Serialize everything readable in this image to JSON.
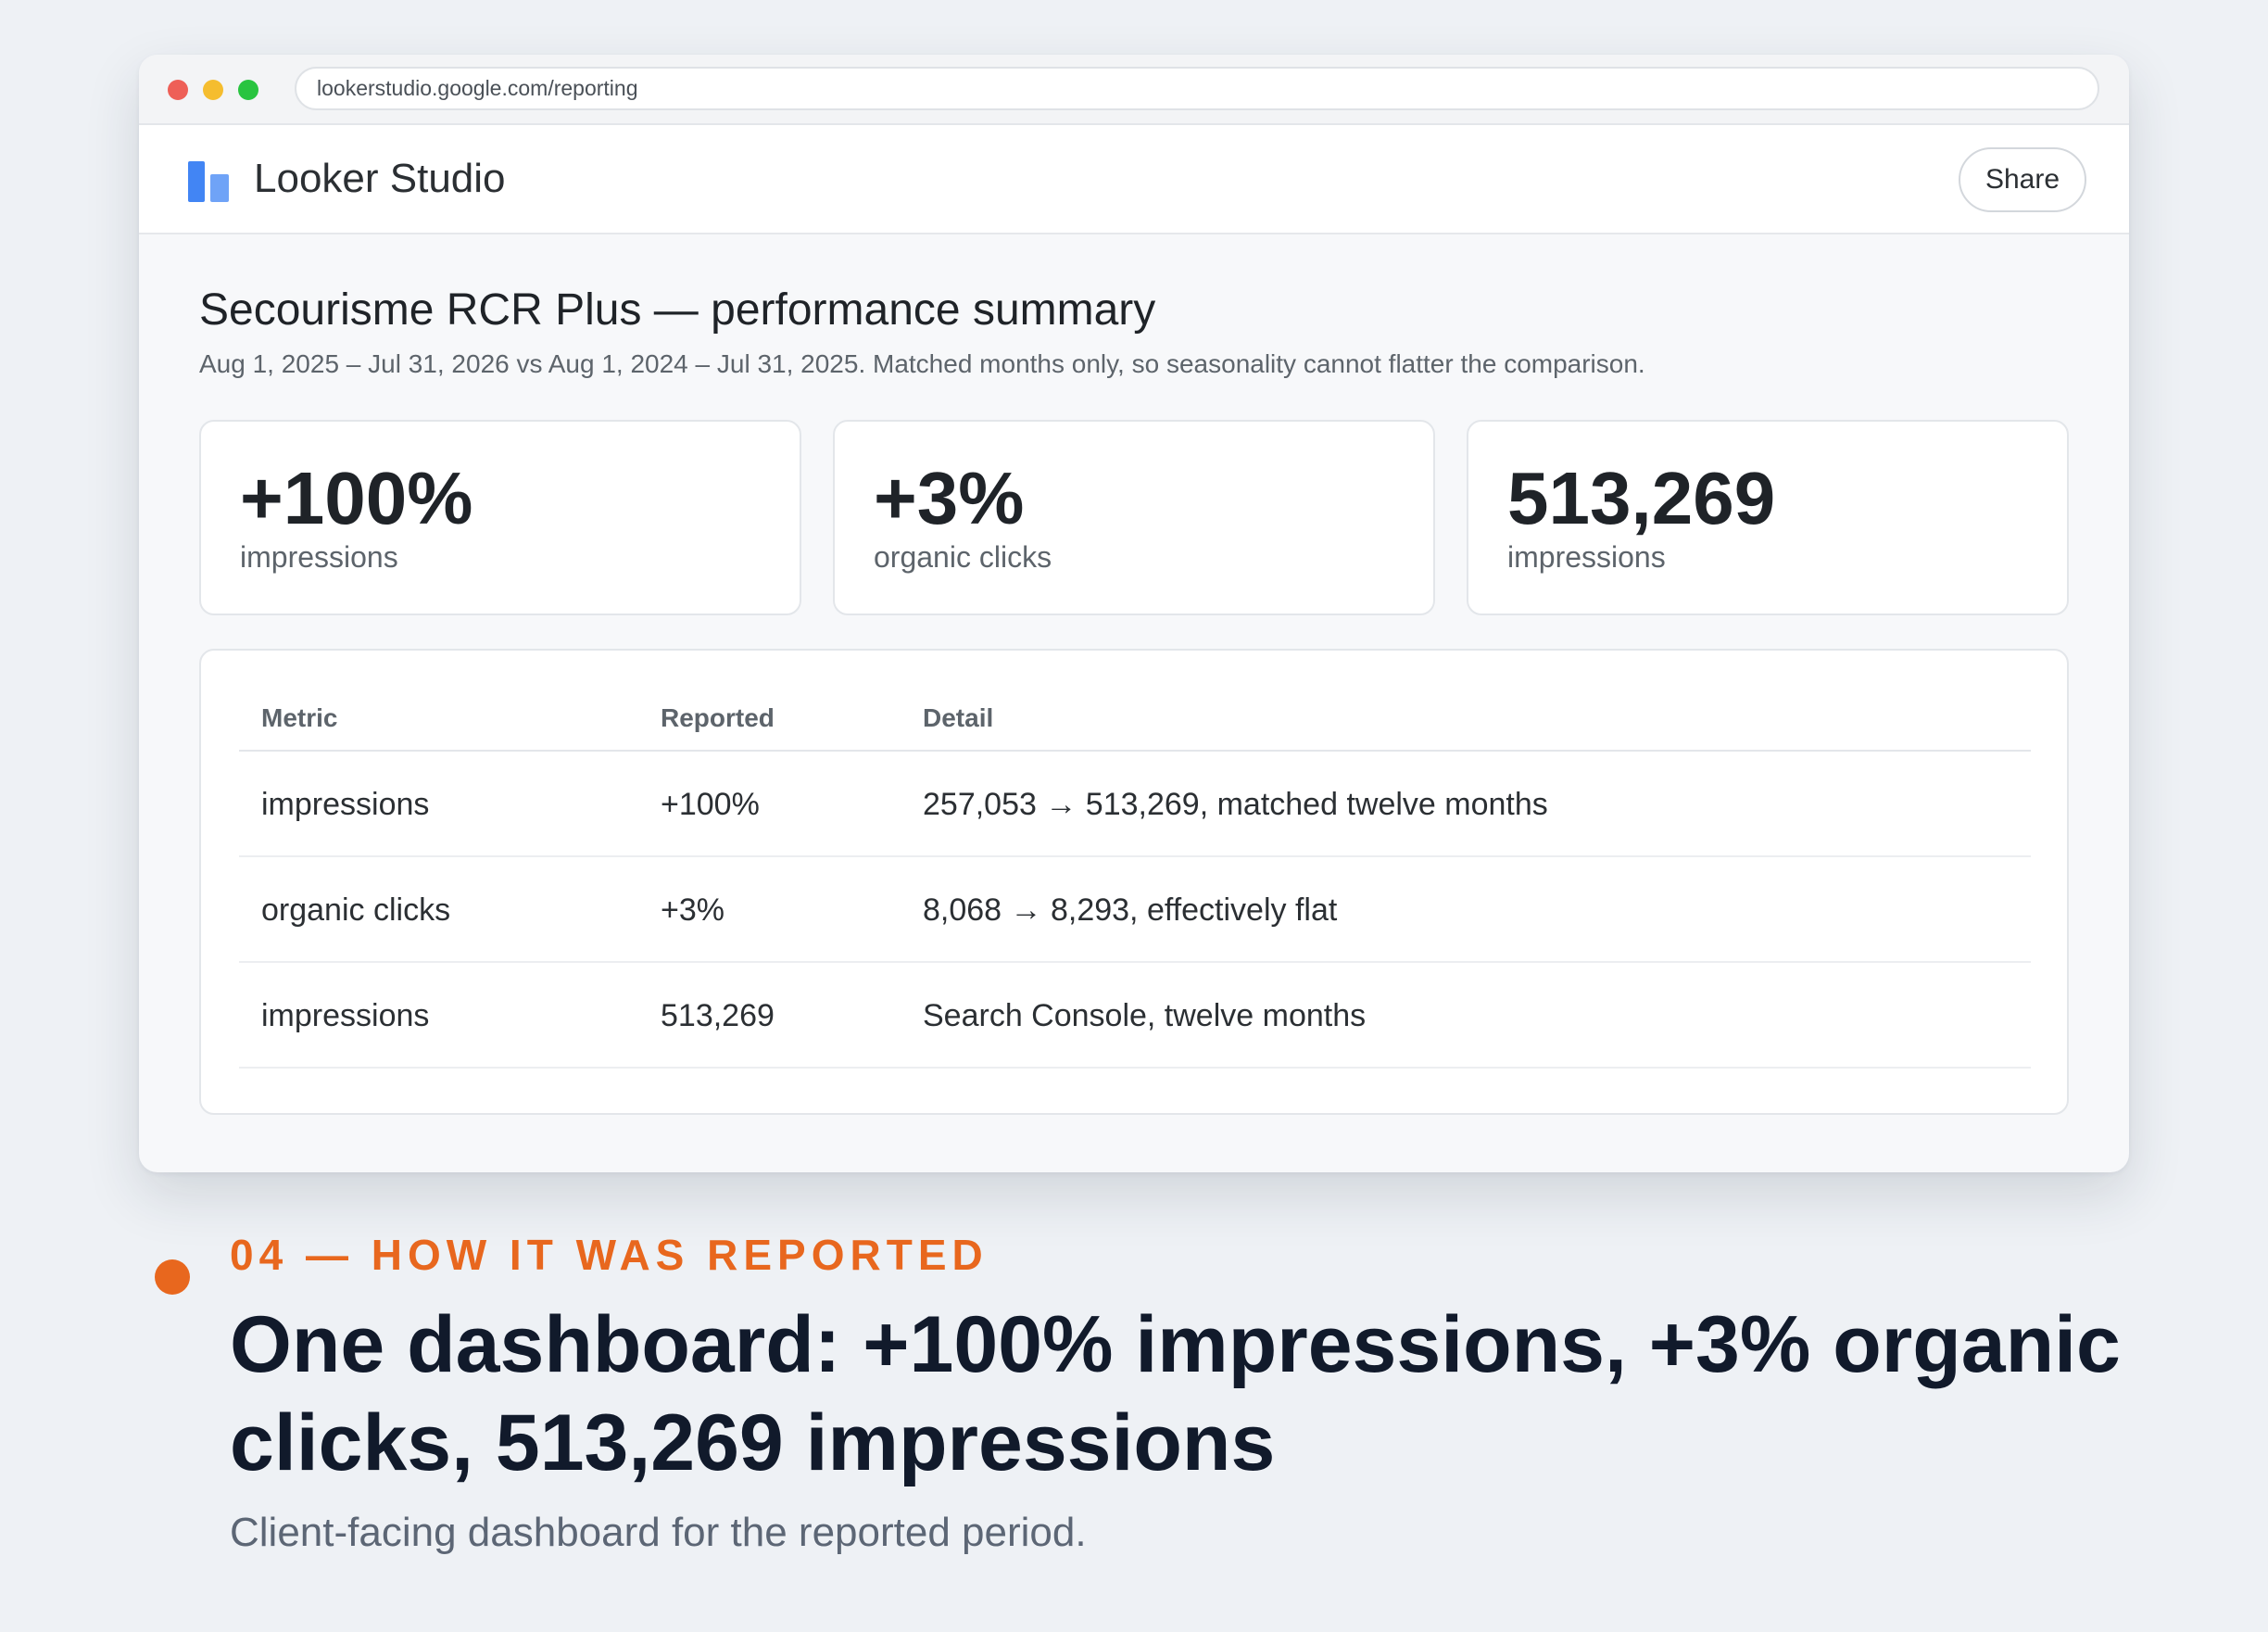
{
  "browser": {
    "url": "lookerstudio.google.com/reporting"
  },
  "app": {
    "name": "Looker Studio",
    "share_label": "Share",
    "brand_color": "#4285f4"
  },
  "report": {
    "title": "Secourisme RCR Plus — performance summary",
    "subtitle": "Aug 1, 2025 – Jul 31, 2026 vs Aug 1, 2024 – Jul 31, 2025. Matched months only, so seasonality cannot flatter the comparison."
  },
  "kpis": [
    {
      "value": "+100%",
      "label": "impressions"
    },
    {
      "value": "+3%",
      "label": "organic clicks"
    },
    {
      "value": "513,269",
      "label": "impressions"
    }
  ],
  "table": {
    "headers": [
      "Metric",
      "Reported",
      "Detail"
    ],
    "rows": [
      [
        "impressions",
        "+100%",
        "257,053 → 513,269, matched twelve months"
      ],
      [
        "organic clicks",
        "+3%",
        "8,068 → 8,293, effectively flat"
      ],
      [
        "impressions",
        "513,269",
        "Search Console, twelve months"
      ]
    ]
  },
  "caption": {
    "eyebrow": "04 — HOW IT WAS REPORTED",
    "headline": "One dashboard: +100% impressions, +3% organic clicks, 513,269 impressions",
    "sub": "Client-facing dashboard for the reported period.",
    "accent_color": "#e8671e"
  }
}
